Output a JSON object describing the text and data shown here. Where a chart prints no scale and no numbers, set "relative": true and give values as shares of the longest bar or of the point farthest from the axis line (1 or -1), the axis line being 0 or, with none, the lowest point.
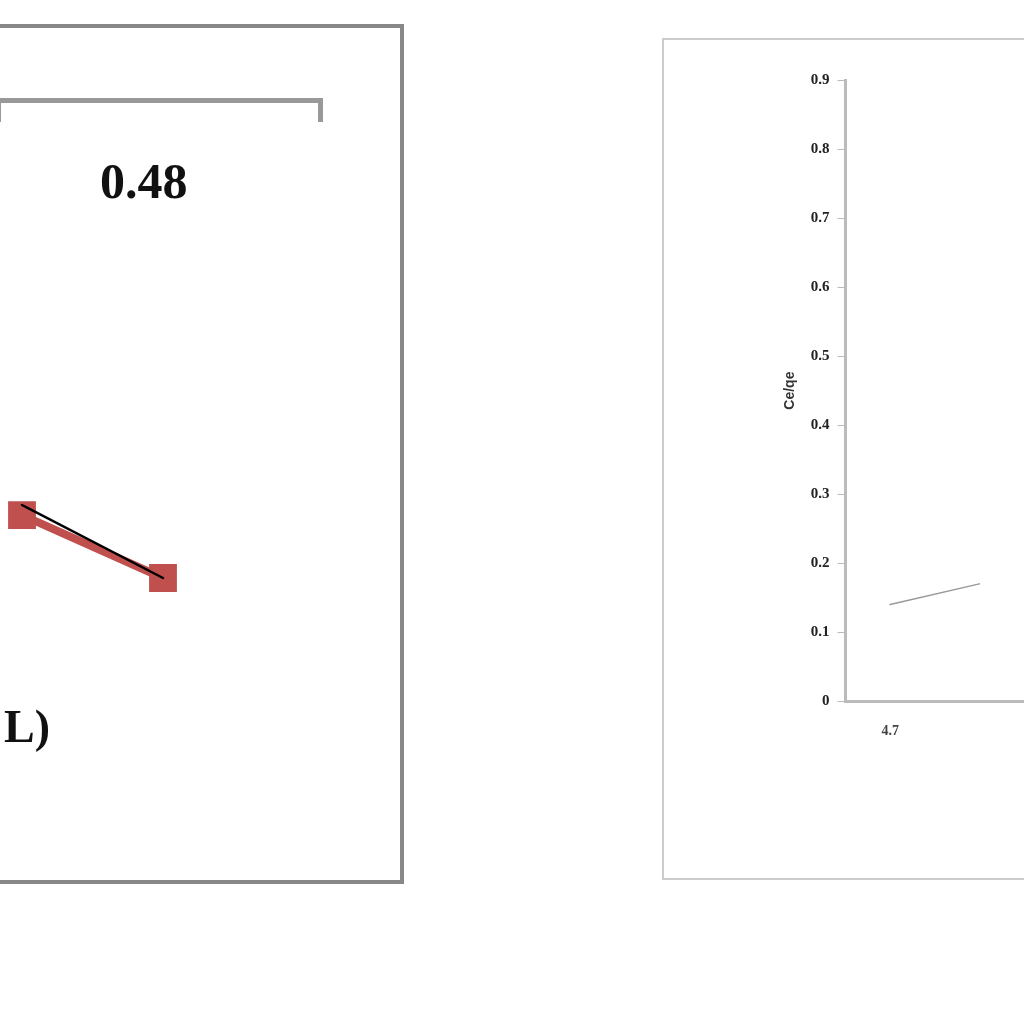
{
  "chart_data": [
    {
      "type": "line",
      "relative": true,
      "categories": [
        null,
        null
      ],
      "xlabel": "L)",
      "annotations": [
        "0.48"
      ],
      "series": [
        {
          "color": "#c0504d",
          "values": [
            0.86,
            0
          ],
          "marker": "square"
        },
        {
          "color": "#000000",
          "values": [
            1,
            0
          ],
          "marker": "none"
        }
      ]
    },
    {
      "type": "line",
      "ylabel": "Ce/qe",
      "categories": [
        "4.7",
        null
      ],
      "ylim": [
        0,
        0.9
      ],
      "yticks": [
        0,
        0.1,
        0.2,
        0.3,
        0.4,
        0.5,
        0.6,
        0.7,
        0.8,
        0.9
      ],
      "grid": false,
      "legend": false,
      "series": [
        {
          "color": "#999999",
          "values": [
            0.14,
            0.17
          ],
          "marker": "none"
        }
      ]
    }
  ]
}
